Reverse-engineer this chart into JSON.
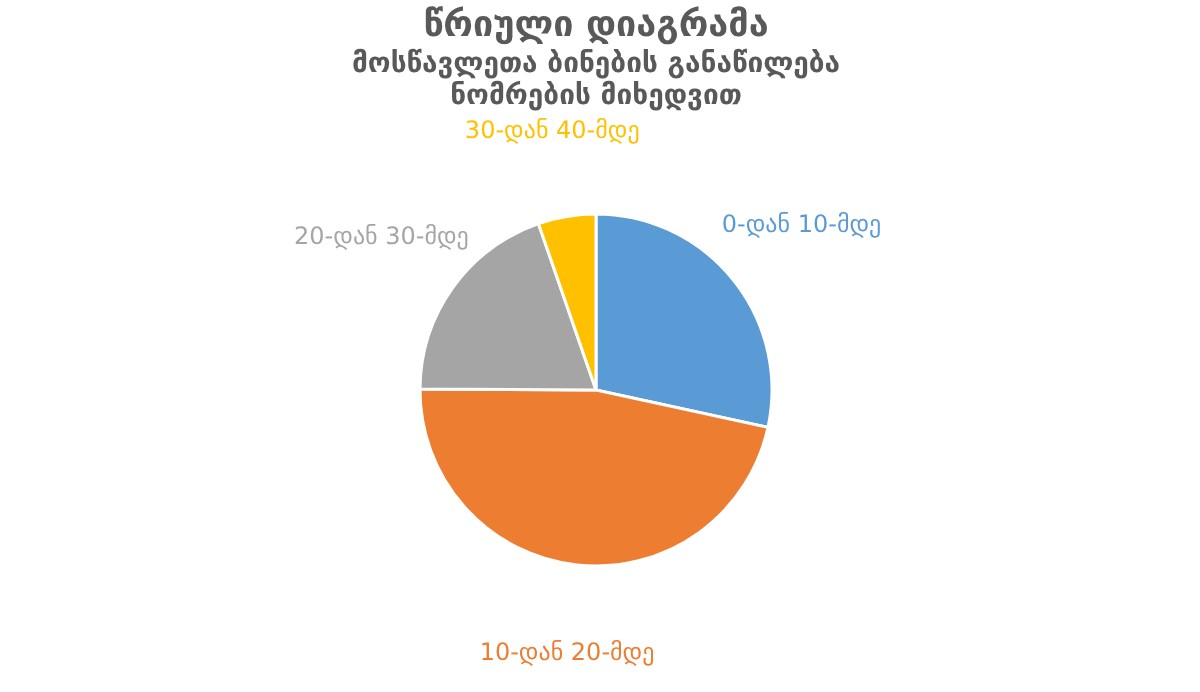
{
  "chart_data": {
    "type": "pie",
    "title": "წრიული დიაგრამა",
    "subtitle": "მოსწავლეთა ბინების განაწილება ნომრების მიხედვით",
    "categories": [
      "0-დან 10-მდე",
      "10-დან 20-მდე",
      "20-დან 30-მდე",
      "30-დან 40-მდე"
    ],
    "values": [
      28.4,
      46.7,
      19.6,
      5.3
    ],
    "colors": [
      "#5b9bd5",
      "#ed7d31",
      "#a5a5a5",
      "#ffc000"
    ],
    "legend": false
  }
}
